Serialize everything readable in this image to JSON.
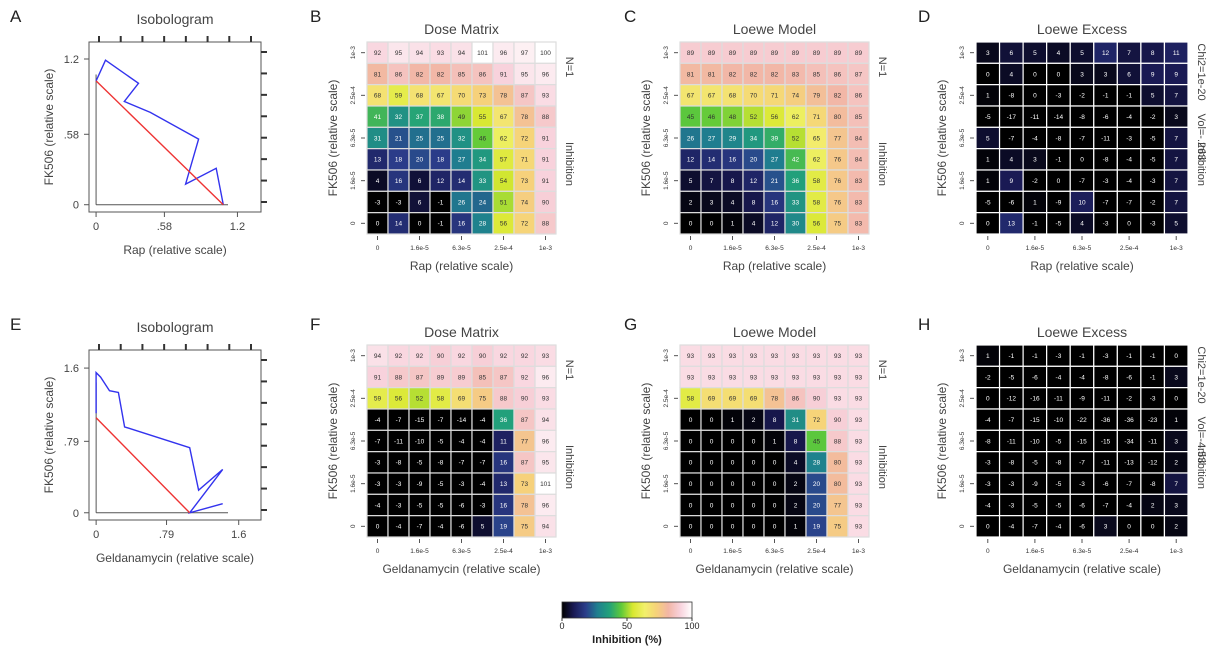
{
  "colors": {
    "isobole_observed": "#3333ee",
    "isobole_additive": "#ee3333",
    "grid_line": "#dddddd",
    "scale_stops": [
      "#000000",
      "#1a1a55",
      "#2b3d8a",
      "#1f7f8f",
      "#22a17a",
      "#5ec93a",
      "#d8e830",
      "#f2f06a",
      "#f6d27a",
      "#f2b6a6",
      "#f8d2dc",
      "#ffffff"
    ]
  },
  "colorbar": {
    "label": "Inhibition (%)",
    "ticks": [
      "0",
      "50",
      "100"
    ],
    "min": 0,
    "max": 100
  },
  "chart_data": [
    {
      "id": "A",
      "type": "line",
      "title": "Isobologram",
      "xlabel": "Rap (relative scale)",
      "ylabel": "FK506 (relative scale)",
      "xticks": [
        "0",
        ".58",
        "1.2"
      ],
      "yticks": [
        "0",
        ".58",
        "1.2"
      ],
      "xtick_values": [
        0,
        0.58,
        1.2
      ],
      "ytick_values": [
        0,
        0.58,
        1.2
      ],
      "xlim": [
        -0.06,
        1.4
      ],
      "ylim": [
        -0.06,
        1.34
      ],
      "series": [
        {
          "role": "observed",
          "x": [
            0.0,
            0.08,
            0.36,
            0.24,
            0.46,
            0.87,
            0.76,
            1.02,
            1.08
          ],
          "y": [
            1.02,
            1.19,
            1.0,
            0.85,
            0.76,
            0.54,
            0.17,
            0.3,
            0.0
          ]
        },
        {
          "role": "additive",
          "x": [
            0.0,
            1.08
          ],
          "y": [
            1.02,
            0.0
          ]
        }
      ]
    },
    {
      "id": "B",
      "type": "heatmap",
      "title": "Dose Matrix",
      "xlabel": "Rap (relative scale)",
      "ylabel": "FK506 (relative scale)",
      "side_label": "Inhibition",
      "side_note": "N=1",
      "xticks": [
        "0",
        "1.6e-5",
        "6.3e-5",
        "2.5e-4",
        "1e-3"
      ],
      "yticks": [
        "0",
        "1.6e-5",
        "6.3e-5",
        "2.5e-4",
        "1e-3"
      ],
      "grid_color": "#dddddd",
      "z": [
        [
          92,
          95,
          94,
          93,
          94,
          101,
          96,
          97,
          100
        ],
        [
          81,
          86,
          82,
          82,
          85,
          86,
          91,
          95,
          96
        ],
        [
          68,
          59,
          68,
          67,
          70,
          73,
          78,
          87,
          93
        ],
        [
          41,
          32,
          37,
          38,
          49,
          55,
          67,
          78,
          88
        ],
        [
          31,
          21,
          25,
          25,
          32,
          46,
          62,
          72,
          91
        ],
        [
          13,
          18,
          20,
          18,
          27,
          34,
          57,
          71,
          91
        ],
        [
          4,
          16,
          6,
          12,
          14,
          33,
          54,
          73,
          91
        ],
        [
          -3,
          -3,
          6,
          -1,
          26,
          24,
          51,
          74,
          90
        ],
        [
          0,
          14,
          0,
          -1,
          16,
          28,
          56,
          72,
          88
        ]
      ]
    },
    {
      "id": "C",
      "type": "heatmap",
      "title": "Loewe Model",
      "xlabel": "Rap (relative scale)",
      "ylabel": "FK506 (relative scale)",
      "side_label": "Inhibition",
      "side_note": "N=1",
      "xticks": [
        "0",
        "1.6e-5",
        "6.3e-5",
        "2.5e-4",
        "1e-3"
      ],
      "yticks": [
        "0",
        "1.6e-5",
        "6.3e-5",
        "2.5e-4",
        "1e-3"
      ],
      "grid_color": "#dddddd",
      "z": [
        [
          89,
          89,
          89,
          89,
          89,
          89,
          89,
          89,
          89
        ],
        [
          81,
          81,
          82,
          82,
          82,
          83,
          85,
          86,
          87
        ],
        [
          67,
          67,
          68,
          70,
          71,
          74,
          79,
          82,
          86
        ],
        [
          45,
          46,
          48,
          52,
          56,
          62,
          71,
          80,
          85
        ],
        [
          26,
          27,
          29,
          34,
          39,
          52,
          65,
          77,
          84
        ],
        [
          12,
          14,
          16,
          20,
          27,
          42,
          62,
          76,
          84
        ],
        [
          5,
          7,
          8,
          12,
          21,
          36,
          58,
          76,
          83
        ],
        [
          2,
          3,
          4,
          8,
          16,
          33,
          58,
          76,
          83
        ],
        [
          0,
          0,
          1,
          4,
          12,
          30,
          56,
          75,
          83
        ]
      ]
    },
    {
      "id": "D",
      "type": "heatmap",
      "title": "Loewe Excess",
      "xlabel": "Rap (relative scale)",
      "ylabel": "FK506 (relative scale)",
      "side_label": "Inhibition",
      "side_note": "Vol=-.263",
      "side_note_top": "Chi2=1e-20",
      "xticks": [
        "0",
        "1.6e-5",
        "6.3e-5",
        "2.5e-4",
        "1e-3"
      ],
      "yticks": [
        "0",
        "1.6e-5",
        "6.3e-5",
        "2.5e-4",
        "1e-3"
      ],
      "grid_color": "#ffffff",
      "z": [
        [
          3,
          6,
          5,
          4,
          5,
          12,
          7,
          8,
          11
        ],
        [
          0,
          4,
          0,
          0,
          3,
          3,
          6,
          9,
          9
        ],
        [
          1,
          -8,
          0,
          -3,
          -2,
          -1,
          -1,
          5,
          7
        ],
        [
          -5,
          -17,
          -11,
          -14,
          -8,
          -6,
          -4,
          -2,
          3
        ],
        [
          5,
          -7,
          -4,
          -8,
          -7,
          -11,
          -3,
          -5,
          7
        ],
        [
          1,
          4,
          3,
          -1,
          0,
          -8,
          -4,
          -5,
          7
        ],
        [
          1,
          9,
          -2,
          0,
          -7,
          -3,
          -4,
          -3,
          7
        ],
        [
          -5,
          -6,
          1,
          -9,
          10,
          -7,
          -7,
          -2,
          7
        ],
        [
          0,
          13,
          -1,
          -5,
          4,
          -3,
          0,
          -3,
          5
        ]
      ]
    },
    {
      "id": "E",
      "type": "line",
      "title": "Isobologram",
      "xlabel": "Geldanamycin (relative scale)",
      "ylabel": "FK506 (relative scale)",
      "xticks": [
        "0",
        ".79",
        "1.6"
      ],
      "yticks": [
        "0",
        ".79",
        "1.6"
      ],
      "xtick_values": [
        0,
        0.79,
        1.6
      ],
      "ytick_values": [
        0,
        0.79,
        1.6
      ],
      "xlim": [
        -0.08,
        1.85
      ],
      "ylim": [
        -0.08,
        1.8
      ],
      "series": [
        {
          "role": "observed",
          "x": [
            0.0,
            0.0,
            0.05,
            0.15,
            0.25,
            0.32,
            1.05,
            1.15,
            1.42,
            1.05,
            1.42
          ],
          "y": [
            1.1,
            1.55,
            1.5,
            1.35,
            1.33,
            0.95,
            0.72,
            0.25,
            0.48,
            0.0,
            0.1
          ]
        },
        {
          "role": "additive",
          "x": [
            0.0,
            1.05
          ],
          "y": [
            1.05,
            0.0
          ]
        }
      ]
    },
    {
      "id": "F",
      "type": "heatmap",
      "title": "Dose Matrix",
      "xlabel": "Geldanamycin (relative scale)",
      "ylabel": "FK506 (relative scale)",
      "side_label": "Inhibition",
      "side_note": "N=1",
      "xticks": [
        "0",
        "1.6e-5",
        "6.3e-5",
        "2.5e-4",
        "1e-3"
      ],
      "yticks": [
        "0",
        "1.6e-5",
        "6.3e-5",
        "2.5e-4",
        "1e-3"
      ],
      "grid_color": "#dddddd",
      "z": [
        [
          94,
          92,
          92,
          90,
          92,
          90,
          92,
          92,
          93
        ],
        [
          91,
          88,
          87,
          89,
          89,
          85,
          87,
          92,
          96
        ],
        [
          59,
          56,
          52,
          58,
          69,
          75,
          88,
          90,
          93
        ],
        [
          -4,
          -7,
          -15,
          -7,
          -14,
          -4,
          36,
          87,
          94
        ],
        [
          -7,
          -11,
          -10,
          -5,
          -4,
          -4,
          11,
          77,
          96
        ],
        [
          -3,
          -8,
          -5,
          -8,
          -7,
          -7,
          16,
          87,
          95
        ],
        [
          -3,
          -3,
          -9,
          -5,
          -3,
          -4,
          13,
          73,
          101
        ],
        [
          -4,
          -3,
          -5,
          -5,
          -6,
          -3,
          16,
          78,
          96
        ],
        [
          0,
          -4,
          -7,
          -4,
          -6,
          5,
          19,
          75,
          94
        ]
      ]
    },
    {
      "id": "G",
      "type": "heatmap",
      "title": "Loewe Model",
      "xlabel": "Geldanamycin (relative scale)",
      "ylabel": "FK506 (relative scale)",
      "side_label": "Inhibition",
      "side_note": "N=1",
      "xticks": [
        "0",
        "1.6e-5",
        "6.3e-5",
        "2.5e-4",
        "1e-3"
      ],
      "yticks": [
        "0",
        "1.6e-5",
        "6.3e-5",
        "2.5e-4",
        "1e-3"
      ],
      "grid_color": "#dddddd",
      "z": [
        [
          93,
          93,
          93,
          93,
          93,
          93,
          93,
          93,
          93
        ],
        [
          93,
          93,
          93,
          93,
          93,
          93,
          93,
          93,
          93
        ],
        [
          58,
          69,
          69,
          69,
          78,
          86,
          90,
          93,
          93
        ],
        [
          0,
          0,
          1,
          2,
          8,
          31,
          72,
          90,
          93
        ],
        [
          0,
          0,
          0,
          0,
          1,
          8,
          45,
          88,
          93
        ],
        [
          0,
          0,
          0,
          0,
          0,
          4,
          28,
          80,
          93
        ],
        [
          0,
          0,
          0,
          0,
          0,
          2,
          20,
          80,
          93
        ],
        [
          0,
          0,
          0,
          0,
          0,
          2,
          20,
          77,
          93
        ],
        [
          0,
          0,
          0,
          0,
          0,
          1,
          19,
          75,
          93
        ]
      ]
    },
    {
      "id": "H",
      "type": "heatmap",
      "title": "Loewe Excess",
      "xlabel": "Geldanamycin (relative scale)",
      "ylabel": "FK506 (relative scale)",
      "side_label": "Inhibition",
      "side_note": "Vol=-4.53",
      "side_note_top": "Chi2=1e-20",
      "xticks": [
        "0",
        "1.6e-5",
        "6.3e-5",
        "2.5e-4",
        "1e-3"
      ],
      "yticks": [
        "0",
        "1.6e-5",
        "6.3e-5",
        "2.5e-4",
        "1e-3"
      ],
      "grid_color": "#ffffff",
      "z": [
        [
          1,
          -1,
          -1,
          -3,
          -1,
          -3,
          -1,
          -1,
          0
        ],
        [
          -2,
          -5,
          -6,
          -4,
          -4,
          -8,
          -6,
          -1,
          3
        ],
        [
          0,
          -12,
          -16,
          -11,
          -9,
          -11,
          -2,
          -3,
          0
        ],
        [
          -4,
          -7,
          -15,
          -10,
          -22,
          -36,
          -36,
          -23,
          1
        ],
        [
          -8,
          -11,
          -10,
          -5,
          -15,
          -15,
          -34,
          -11,
          3
        ],
        [
          -3,
          -8,
          -5,
          -8,
          -7,
          -11,
          -13,
          -12,
          2
        ],
        [
          -3,
          -3,
          -9,
          -5,
          -3,
          -6,
          -7,
          -8,
          7
        ],
        [
          -4,
          -3,
          -5,
          -5,
          -6,
          -7,
          -4,
          2,
          3
        ],
        [
          0,
          -4,
          -7,
          -4,
          -6,
          3,
          0,
          0,
          2
        ]
      ]
    }
  ]
}
